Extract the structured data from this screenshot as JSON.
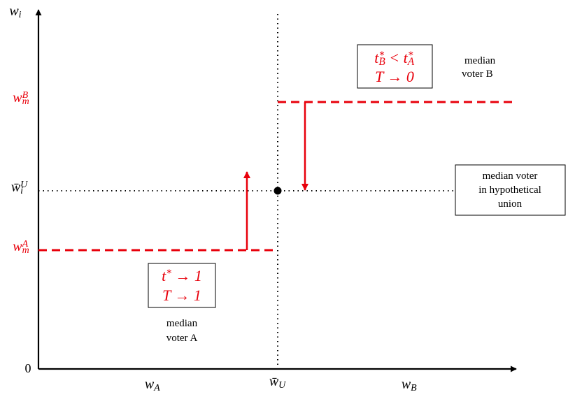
{
  "axes": {
    "y_label": [
      {
        "base": "w"
      },
      {
        "sub": "i"
      }
    ],
    "origin": "0",
    "x_labels": [
      [
        {
          "base": "w"
        },
        {
          "sub": "A"
        }
      ],
      [
        {
          "base": "w̄"
        },
        {
          "sub": "U"
        }
      ],
      [
        {
          "base": "w"
        },
        {
          "sub": "B"
        }
      ]
    ]
  },
  "y_levels": [
    [
      {
        "base": "w"
      },
      {
        "sup": "B"
      },
      {
        "sub": "m"
      }
    ],
    [
      {
        "base": "w̄"
      },
      {
        "sup": "U"
      },
      {
        "sub": "i"
      }
    ],
    [
      {
        "base": "w"
      },
      {
        "sup": "A"
      },
      {
        "sub": "m"
      }
    ]
  ],
  "box_b": {
    "lines": [
      [
        {
          "base": "t"
        },
        {
          "sup": "*"
        },
        {
          "sub": "B"
        },
        {
          "base": " < t"
        },
        {
          "sup": "*"
        },
        {
          "sub": "A"
        }
      ],
      [
        {
          "base": "T → 0"
        }
      ]
    ],
    "caption": [
      "median",
      "voter B"
    ]
  },
  "box_union": {
    "lines": [
      "median voter",
      "in hypothetical",
      "union"
    ]
  },
  "box_a": {
    "lines": [
      [
        {
          "base": "t"
        },
        {
          "sup": "*"
        },
        {
          "base": " → 1"
        }
      ],
      [
        {
          "base": "T → 1"
        }
      ]
    ],
    "caption": [
      "median",
      "voter A"
    ]
  }
}
